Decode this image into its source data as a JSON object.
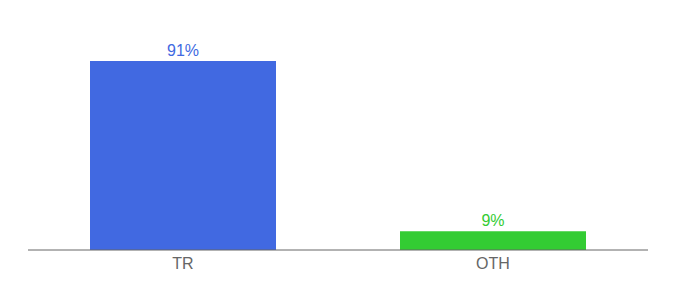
{
  "chart_data": {
    "type": "bar",
    "categories": [
      "TR",
      "OTH"
    ],
    "values": [
      91,
      9
    ],
    "value_labels": [
      "91%",
      "9%"
    ],
    "data_labels": true,
    "colors": [
      "#4169e1",
      "#33cc33"
    ],
    "ylim": [
      0,
      105
    ],
    "tick_labels": "x",
    "grid": false
  }
}
